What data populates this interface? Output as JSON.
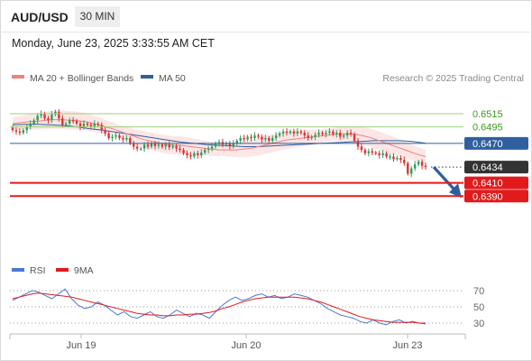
{
  "header": {
    "symbol": "AUD/USD",
    "interval": "30 MIN",
    "datetime": "Monday, June 23, 2025 3:33:55 AM CET"
  },
  "legend": {
    "ma20": {
      "label": "MA 20 + Bollinger Bands",
      "color": "#f08080"
    },
    "ma50": {
      "label": "MA 50",
      "color": "#2f5f9e"
    },
    "credit": "Research © 2025 Trading Central"
  },
  "rsi_legend": {
    "rsi": {
      "label": "RSI",
      "color": "#4a78d4"
    },
    "ma9": {
      "label": "9MA",
      "color": "#e31a1c"
    }
  },
  "colors": {
    "up": "#2e9e5b",
    "down": "#e03030",
    "band": "#fde2e2",
    "resistance": "#9bd27a",
    "support": "#e31a1c",
    "pivot": "#2f5f9e",
    "current_tag": "#333333",
    "arrow": "#2d5fa0"
  },
  "chart_data": [
    {
      "type": "candlestick",
      "title": "AUD/USD",
      "x_ticks": [
        "Jun 19",
        "Jun 20",
        "Jun 23"
      ],
      "y_range": [
        0.6385,
        0.6525
      ],
      "levels": [
        {
          "label": "0.6515",
          "value": 0.6515,
          "kind": "resistance"
        },
        {
          "label": "0.6495",
          "value": 0.6495,
          "kind": "resistance"
        },
        {
          "label": "0.6470",
          "value": 0.647,
          "kind": "pivot"
        },
        {
          "label": "0.6434",
          "value": 0.6434,
          "kind": "current"
        },
        {
          "label": "0.6410",
          "value": 0.641,
          "kind": "support"
        },
        {
          "label": "0.6390",
          "value": 0.639,
          "kind": "support"
        }
      ],
      "projection": {
        "from": 0.6434,
        "to": 0.639
      },
      "close_series": [
        0.649,
        0.6488,
        0.6486,
        0.649,
        0.6495,
        0.65,
        0.6505,
        0.6512,
        0.6515,
        0.6508,
        0.6505,
        0.6514,
        0.6518,
        0.6508,
        0.6498,
        0.65,
        0.6505,
        0.6504,
        0.65,
        0.6495,
        0.65,
        0.6498,
        0.6496,
        0.65,
        0.6498,
        0.649,
        0.6485,
        0.6478,
        0.648,
        0.6482,
        0.6478,
        0.6476,
        0.6478,
        0.647,
        0.6465,
        0.6462,
        0.6462,
        0.6468,
        0.6465,
        0.647,
        0.6466,
        0.6468,
        0.6465,
        0.6468,
        0.6464,
        0.6466,
        0.6462,
        0.646,
        0.6455,
        0.6452,
        0.645,
        0.6455,
        0.6452,
        0.6456,
        0.646,
        0.6462,
        0.6465,
        0.647,
        0.6472,
        0.6468,
        0.647,
        0.6466,
        0.647,
        0.6474,
        0.6478,
        0.6476,
        0.648,
        0.6478,
        0.6482,
        0.648,
        0.6476,
        0.6478,
        0.6474,
        0.6478,
        0.6482,
        0.6485,
        0.6488,
        0.6486,
        0.6488,
        0.6485,
        0.6488,
        0.6486,
        0.6482,
        0.6478,
        0.648,
        0.6483,
        0.6486,
        0.6484,
        0.6486,
        0.6488,
        0.6484,
        0.6486,
        0.648,
        0.6482,
        0.6486,
        0.6484,
        0.6474,
        0.6465,
        0.646,
        0.6455,
        0.6458,
        0.6456,
        0.6455,
        0.6452,
        0.6455,
        0.645,
        0.645,
        0.6446,
        0.6448,
        0.6445,
        0.644,
        0.6424,
        0.6432,
        0.6438,
        0.6442,
        0.6436,
        0.6434
      ],
      "ma20": [
        0.65,
        0.6501,
        0.6502,
        0.6503,
        0.6503,
        0.6504,
        0.6505,
        0.6506,
        0.6506,
        0.6506,
        0.6505,
        0.6505,
        0.6504,
        0.6503,
        0.6501,
        0.6499,
        0.6497,
        0.6494,
        0.6492,
        0.6489,
        0.6486,
        0.6483,
        0.648,
        0.6477,
        0.6475,
        0.6473,
        0.6471,
        0.6469,
        0.6468,
        0.6467,
        0.6467,
        0.6466,
        0.6465,
        0.6464,
        0.6463,
        0.6462,
        0.6461,
        0.646,
        0.646,
        0.646,
        0.646,
        0.6461,
        0.6462,
        0.6463,
        0.6465,
        0.6467,
        0.6469,
        0.6471,
        0.6473,
        0.6475,
        0.6476,
        0.6477,
        0.6478,
        0.6479,
        0.648,
        0.6481,
        0.6482,
        0.6483,
        0.6484,
        0.6484,
        0.6484,
        0.6484,
        0.6483,
        0.6481,
        0.6479,
        0.6476,
        0.6473,
        0.647,
        0.6467,
        0.6464,
        0.6461,
        0.6458,
        0.6455,
        0.6452,
        0.645
      ],
      "ma50": [
        0.6498,
        0.6499,
        0.6499,
        0.6498,
        0.6497,
        0.6495,
        0.6492,
        0.649,
        0.6487,
        0.6484,
        0.6481,
        0.6478,
        0.6475,
        0.6472,
        0.647,
        0.6468,
        0.6467,
        0.6466,
        0.6465,
        0.6465,
        0.6466,
        0.6467,
        0.6468,
        0.6469,
        0.647,
        0.6471,
        0.6472,
        0.6473,
        0.6474,
        0.6474,
        0.6474,
        0.6473,
        0.647
      ]
    },
    {
      "type": "line",
      "title": "RSI",
      "y_ticks": [
        70,
        50,
        30
      ],
      "series": [
        {
          "name": "RSI",
          "values": [
            58,
            62,
            66,
            70,
            68,
            64,
            60,
            66,
            72,
            60,
            52,
            48,
            50,
            56,
            52,
            46,
            40,
            44,
            38,
            36,
            40,
            44,
            38,
            36,
            40,
            46,
            42,
            38,
            42,
            40,
            36,
            44,
            52,
            58,
            62,
            58,
            60,
            64,
            66,
            62,
            64,
            60,
            62,
            66,
            64,
            62,
            58,
            54,
            48,
            44,
            40,
            38,
            36,
            32,
            30,
            34,
            30,
            28,
            32,
            34,
            30,
            32,
            30,
            29
          ]
        },
        {
          "name": "9MA",
          "values": [
            60,
            62,
            64,
            66,
            67,
            66,
            65,
            64,
            63,
            62,
            60,
            58,
            56,
            54,
            52,
            50,
            48,
            46,
            44,
            42,
            41,
            40,
            40,
            39,
            39,
            40,
            40,
            41,
            41,
            42,
            43,
            45,
            48,
            50,
            53,
            56,
            58,
            60,
            61,
            62,
            62,
            62,
            62,
            62,
            61,
            60,
            58,
            56,
            53,
            50,
            47,
            44,
            41,
            38,
            36,
            34,
            33,
            32,
            31,
            31,
            31,
            31,
            30,
            30
          ]
        }
      ]
    }
  ]
}
